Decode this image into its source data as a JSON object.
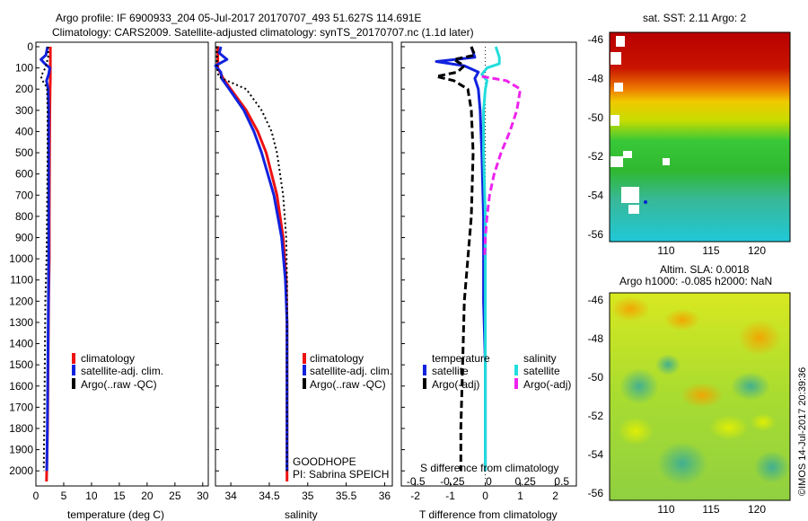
{
  "header": {
    "line1": "Argo profile: IF 6900933_204 05-Jul-2017 20170707_493 51.627S 114.691E",
    "line2": "Climatology: CARS2009. Satellite-adjusted climatology: synTS_20170707.nc (1.1d later)"
  },
  "colors": {
    "red": "#ee1111",
    "blue": "#1122dd",
    "black": "#000000",
    "cyan": "#22dddd",
    "magenta": "#ee22ee"
  },
  "legend_main": [
    "climatology",
    "satellite-adj. clim.",
    "Argo(..raw -QC)"
  ],
  "legend_diff": {
    "temperature_head": "temperature",
    "salinity_head": "salinity",
    "satellite": "satellite",
    "argo_adj": "Argo(-adj)"
  },
  "float_info": {
    "project": "GOODHOPE",
    "pi": "PI: Sabrina SPEICH"
  },
  "map_top": {
    "title": "sat. SST: 2.11 Argo: 2",
    "xticks": [
      "110",
      "115",
      "120"
    ],
    "yticks": [
      "-46",
      "-48",
      "-50",
      "-52",
      "-54",
      "-56"
    ]
  },
  "map_bottom": {
    "title1": "Altim. SLA: 0.0018",
    "title2": "Argo h1000: -0.085 h2000: NaN",
    "xticks": [
      "110",
      "115",
      "120"
    ],
    "yticks": [
      "-46",
      "-48",
      "-50",
      "-52",
      "-54",
      "-56"
    ]
  },
  "stamp": "©IMOS 14-Jul-2017 20:39:36",
  "chart_data": [
    {
      "type": "line",
      "xlabel": "temperature (deg C)",
      "ylabel": "",
      "xlim": [
        0,
        31
      ],
      "ylim": [
        2050,
        0
      ],
      "xticks": [
        0,
        5,
        10,
        15,
        20,
        25,
        30
      ],
      "yticks": [
        0,
        100,
        200,
        300,
        400,
        500,
        600,
        700,
        800,
        900,
        1000,
        1100,
        1200,
        1300,
        1400,
        1500,
        1600,
        1700,
        1800,
        1900,
        2000
      ],
      "series": [
        {
          "name": "climatology",
          "color": "red",
          "depth": [
            0,
            50,
            100,
            150,
            200,
            300,
            500,
            800,
            1000,
            1200,
            1500,
            1800,
            2050
          ],
          "values": [
            2.6,
            2.6,
            2.6,
            2.6,
            2.55,
            2.5,
            2.45,
            2.4,
            2.4,
            2.3,
            2.2,
            2.1,
            1.9
          ]
        },
        {
          "name": "satellite-adj. clim.",
          "color": "blue",
          "depth": [
            0,
            40,
            60,
            80,
            100,
            130,
            160,
            200,
            300,
            500,
            800,
            1000,
            1200,
            1500,
            1800,
            2000
          ],
          "values": [
            2.1,
            1.8,
            0.9,
            1.6,
            2.5,
            2.3,
            1.9,
            2.2,
            2.3,
            2.3,
            2.3,
            2.3,
            2.25,
            2.15,
            2.05,
            1.95
          ]
        },
        {
          "name": "Argo(..raw -QC)",
          "color": "black",
          "dash": true,
          "depth": [
            0,
            50,
            100,
            140,
            160,
            180,
            200,
            300,
            500,
            800,
            1000,
            1200,
            1500,
            1800,
            2000
          ],
          "values": [
            2.2,
            2.2,
            1.7,
            0.9,
            1.2,
            1.7,
            2.0,
            2.1,
            2.1,
            2.0,
            1.9,
            1.7,
            1.6,
            1.5,
            1.4
          ]
        }
      ]
    },
    {
      "type": "line",
      "xlabel": "salinity",
      "ylabel": "",
      "xlim": [
        33.8,
        36.1
      ],
      "ylim": [
        2050,
        0
      ],
      "xticks": [
        34,
        34.5,
        35,
        35.5,
        36
      ],
      "series": [
        {
          "name": "climatology",
          "color": "red",
          "depth": [
            0,
            100,
            150,
            200,
            300,
            400,
            500,
            700,
            900,
            1100,
            1300,
            1500,
            1800,
            2050
          ],
          "values": [
            33.83,
            33.83,
            33.9,
            34.0,
            34.2,
            34.35,
            34.46,
            34.6,
            34.68,
            34.72,
            34.73,
            34.73,
            34.73,
            34.73
          ]
        },
        {
          "name": "satellite-adj. clim.",
          "color": "blue",
          "depth": [
            0,
            30,
            60,
            90,
            120,
            150,
            200,
            300,
            400,
            500,
            700,
            900,
            1100,
            1300,
            1500,
            1800,
            2000
          ],
          "values": [
            33.87,
            33.85,
            33.95,
            33.8,
            33.87,
            33.88,
            33.98,
            34.17,
            34.3,
            34.4,
            34.56,
            34.66,
            34.71,
            34.73,
            34.73,
            34.73,
            34.73
          ]
        },
        {
          "name": "Argo(..raw -QC)",
          "color": "black",
          "dash": true,
          "depth": [
            0,
            100,
            140,
            160,
            200,
            300,
            400,
            500,
            700,
            900,
            1100,
            1300,
            1500,
            1800,
            2000
          ],
          "values": [
            33.82,
            33.82,
            33.84,
            33.95,
            34.2,
            34.4,
            34.53,
            34.6,
            34.68,
            34.72,
            34.73,
            34.73,
            34.73,
            34.73,
            34.73
          ]
        }
      ]
    },
    {
      "type": "line",
      "xlabel": "T difference from climatology",
      "ylabel": "",
      "xlim": [
        -2.4,
        2.6
      ],
      "ylim": [
        2050,
        0
      ],
      "xticks": [
        -2,
        -1,
        0,
        1,
        2
      ],
      "top_axis": {
        "label": "S difference from climatology",
        "ticks": [
          -0.5,
          -0.25,
          0,
          0.25,
          0.5
        ]
      },
      "series": [
        {
          "name": "satellite",
          "group": "temperature",
          "color": "blue",
          "depth": [
            0,
            50,
            70,
            90,
            120,
            150,
            200,
            300,
            500,
            800,
            1000,
            1200,
            1500,
            1800,
            2000
          ],
          "values": [
            -0.4,
            -0.3,
            -1.4,
            -0.6,
            -0.2,
            -0.3,
            -0.2,
            -0.15,
            -0.1,
            -0.05,
            -0.05,
            -0.05,
            0,
            0,
            0
          ]
        },
        {
          "name": "Argo(-adj)",
          "group": "temperature",
          "color": "black",
          "dash": true,
          "depth": [
            0,
            40,
            60,
            90,
            120,
            140,
            160,
            200,
            300,
            500,
            800,
            1000,
            1200,
            1500,
            1800,
            2000
          ],
          "values": [
            -0.4,
            -0.3,
            -0.9,
            -0.6,
            -0.8,
            -1.4,
            -0.9,
            -0.5,
            -0.4,
            -0.35,
            -0.4,
            -0.5,
            -0.6,
            -0.65,
            -0.7,
            -0.7
          ]
        },
        {
          "name": "satellite",
          "group": "salinity",
          "color": "cyan",
          "depth": [
            0,
            50,
            80,
            100,
            130,
            160,
            200,
            300,
            500,
            800,
            1000,
            1200,
            1500,
            1800,
            2000
          ],
          "values": [
            0.3,
            0.4,
            0.4,
            0.05,
            -0.1,
            0.05,
            0.0,
            -0.05,
            -0.05,
            0,
            0,
            0,
            0,
            0,
            0
          ]
        },
        {
          "name": "Argo(-adj)",
          "group": "salinity",
          "color": "magenta",
          "dash": true,
          "depth": [
            140,
            160,
            200,
            300,
            400,
            500,
            600,
            700,
            800,
            900,
            1000
          ],
          "values": [
            -0.1,
            0.6,
            1.0,
            0.9,
            0.7,
            0.45,
            0.25,
            0.12,
            0.05,
            0.0,
            -0.02
          ]
        }
      ]
    }
  ]
}
